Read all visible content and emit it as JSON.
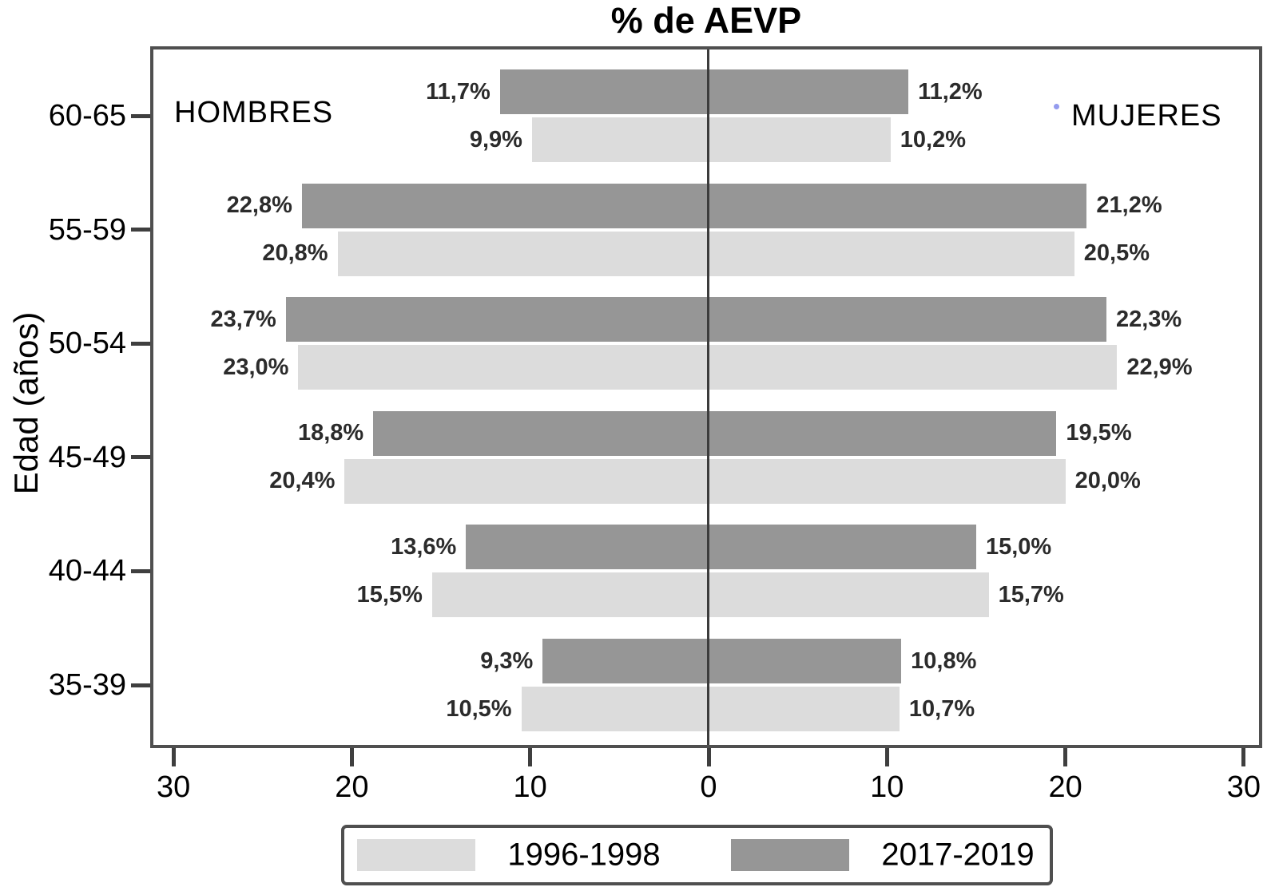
{
  "chart": {
    "title": "% de AEVP",
    "y_axis_label": "Edad (años)",
    "left_group_label": "HOMBRES",
    "right_group_label": "MUJERES"
  },
  "chart_data": {
    "type": "bar",
    "orientation": "horizontal-pyramid",
    "title": "% de AEVP",
    "ylabel": "Edad (años)",
    "categories": [
      "60-65",
      "55-59",
      "50-54",
      "45-49",
      "40-44",
      "35-39"
    ],
    "x_tick_labels": [
      "30",
      "20",
      "10",
      "0",
      "10",
      "20",
      "30"
    ],
    "x_axis_halfrange_units": 31,
    "grid": false,
    "legend_position": "bottom",
    "value_label_format": "comma-decimal-percent",
    "series": [
      {
        "name": "1996-1998",
        "color": "#dcdcdc",
        "hombres": [
          9.9,
          20.8,
          23.0,
          20.4,
          15.5,
          10.5
        ],
        "mujeres": [
          10.2,
          20.5,
          22.9,
          20.0,
          15.7,
          10.7
        ]
      },
      {
        "name": "2017-2019",
        "color": "#969696",
        "hombres": [
          11.7,
          22.8,
          23.7,
          18.8,
          13.6,
          9.3
        ],
        "mujeres": [
          11.2,
          21.2,
          22.3,
          19.5,
          15.0,
          10.8
        ]
      }
    ]
  },
  "legend": {
    "items": [
      {
        "label": "1996-1998",
        "color": "#dcdcdc"
      },
      {
        "label": "2017-2019",
        "color": "#969696"
      }
    ]
  }
}
